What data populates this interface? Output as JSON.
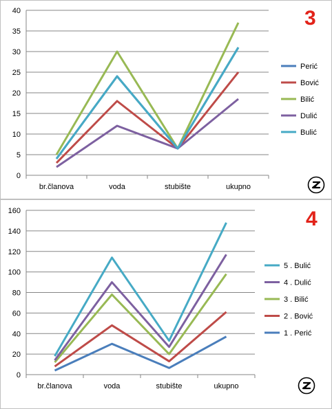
{
  "chart_data": [
    {
      "type": "line",
      "badge": "3",
      "categories": [
        "br.članova",
        "voda",
        "stubište",
        "ukupno"
      ],
      "ylim": [
        0,
        40
      ],
      "yticks": [
        0,
        5,
        10,
        15,
        20,
        25,
        30,
        35,
        40
      ],
      "grid": true,
      "legend_position": "right",
      "series": [
        {
          "name": "Perić",
          "color": "#4a7ebb",
          "values": [
            4,
            24,
            6.5,
            31
          ]
        },
        {
          "name": "Bović",
          "color": "#be4b48",
          "values": [
            3,
            18,
            6.5,
            25
          ]
        },
        {
          "name": "Bilić",
          "color": "#98b954",
          "values": [
            5,
            30,
            6.5,
            37
          ]
        },
        {
          "name": "Dulić",
          "color": "#7d60a0",
          "values": [
            2,
            12,
            6.5,
            18.5
          ]
        },
        {
          "name": "Bulić",
          "color": "#46aac5",
          "values": [
            4,
            24,
            6.5,
            31
          ]
        }
      ],
      "draw_order": [
        0,
        1,
        2,
        3,
        4
      ]
    },
    {
      "type": "line",
      "badge": "4",
      "categories": [
        "br.članova",
        "voda",
        "stubište",
        "ukupno"
      ],
      "ylim": [
        0,
        160
      ],
      "yticks": [
        0,
        20,
        40,
        60,
        80,
        100,
        120,
        140,
        160
      ],
      "grid": true,
      "legend_position": "right",
      "series": [
        {
          "name": "5 . Bulić",
          "color": "#46aac5",
          "values": [
            18,
            114,
            33,
            148
          ]
        },
        {
          "name": "4 . Dulić",
          "color": "#7d60a0",
          "values": [
            14,
            90,
            27,
            117
          ]
        },
        {
          "name": "3 . Bilić",
          "color": "#98b954",
          "values": [
            12,
            78,
            20,
            98
          ]
        },
        {
          "name": "2 . Bović",
          "color": "#be4b48",
          "values": [
            8,
            48,
            13,
            61
          ]
        },
        {
          "name": "1 . Perić",
          "color": "#4a7ebb",
          "values": [
            4,
            30,
            6.5,
            37
          ]
        }
      ],
      "draw_order": [
        4,
        3,
        2,
        1,
        0
      ]
    }
  ]
}
